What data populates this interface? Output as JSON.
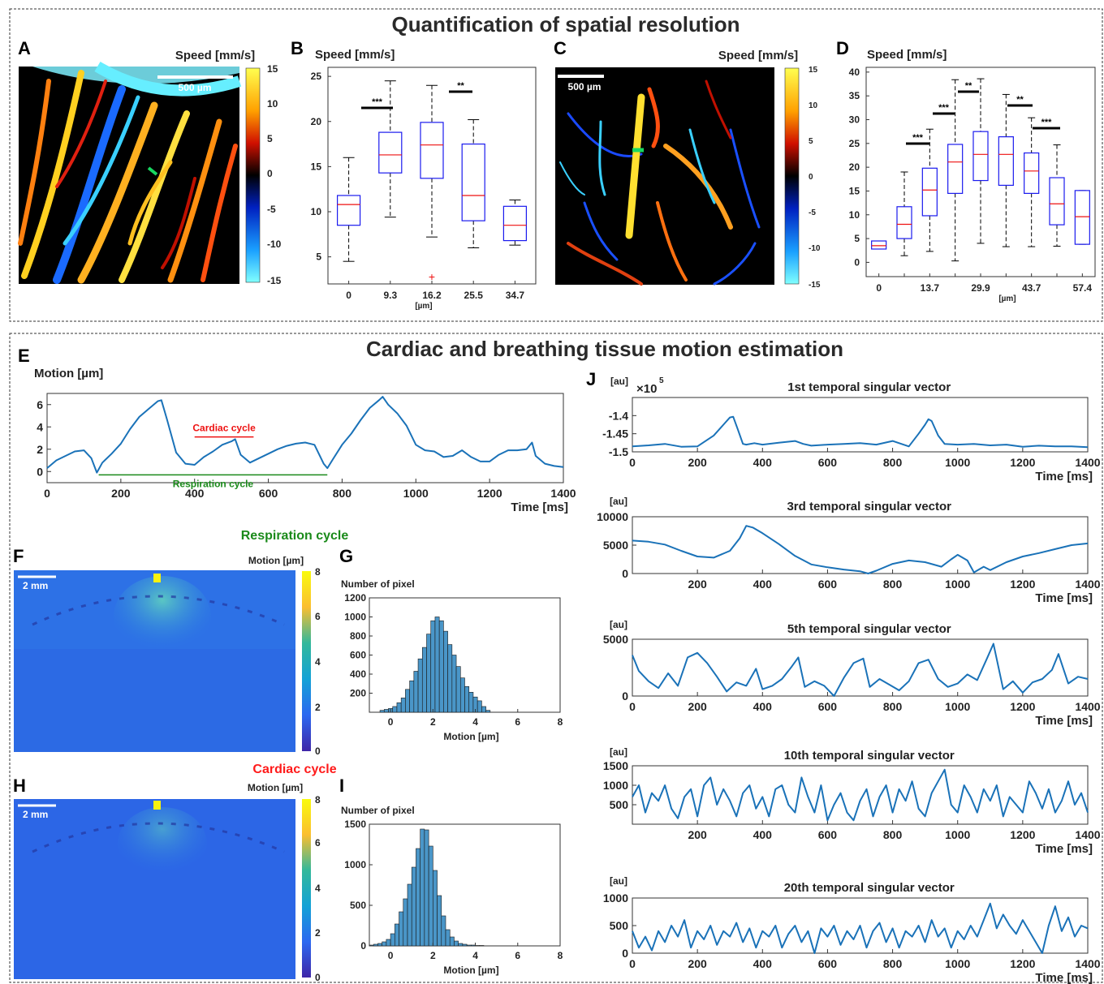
{
  "titles": {
    "top": "Quantification of spatial resolution",
    "bottom": "Cardiac and breathing tissue motion estimation"
  },
  "panel_labels": {
    "A": "A",
    "B": "B",
    "C": "C",
    "D": "D",
    "E": "E",
    "F": "F",
    "G": "G",
    "H": "H",
    "I": "I",
    "J": "J"
  },
  "panelA": {
    "colorbar_label": "Speed [mm/s]",
    "scalebar": "500 µm",
    "colorbar_ticks": [
      "15",
      "10",
      "5",
      "0",
      "-5",
      "-10",
      "-15"
    ]
  },
  "panelC": {
    "colorbar_label": "Speed [mm/s]",
    "scalebar": "500 µm",
    "colorbar_ticks": [
      "15",
      "10",
      "5",
      "0",
      "-5",
      "-10",
      "-15"
    ]
  },
  "panelF": {
    "header": "Respiration cycle",
    "colorbar_label": "Motion [µm]",
    "scalebar": "2 mm",
    "colorbar_ticks": [
      "8",
      "6",
      "4",
      "2",
      "0"
    ],
    "header_color": "#1a8a1a"
  },
  "panelH": {
    "header": "Cardiac cycle",
    "colorbar_label": "Motion [µm]",
    "scalebar": "2 mm",
    "colorbar_ticks": [
      "8",
      "6",
      "4",
      "2",
      "0"
    ],
    "header_color": "#ff1a1a"
  },
  "chart_data": [
    {
      "id": "B",
      "type": "box",
      "ylabel": "Speed [mm/s]",
      "xlabel": "[µm]",
      "ylim": [
        2,
        26
      ],
      "yticks": [
        5,
        10,
        15,
        20,
        25
      ],
      "categories": [
        "0",
        "9.3",
        "16.2",
        "25.5",
        "34.7"
      ],
      "boxes": [
        {
          "min": 4.5,
          "q1": 8.5,
          "median": 10.8,
          "q3": 11.8,
          "max": 16
        },
        {
          "min": 9.4,
          "q1": 14.3,
          "median": 16.3,
          "q3": 18.8,
          "max": 24.5
        },
        {
          "min": 7.2,
          "q1": 13.7,
          "median": 17.4,
          "q3": 19.9,
          "max": 24,
          "outliers": [
            2.8
          ]
        },
        {
          "min": 6,
          "q1": 9,
          "median": 11.8,
          "q3": 17.5,
          "max": 20.2
        },
        {
          "min": 6.3,
          "q1": 6.8,
          "median": 8.5,
          "q3": 10.6,
          "max": 11.3
        }
      ],
      "significance": [
        {
          "from": "0",
          "to": "9.3",
          "label": "***"
        },
        {
          "from": "25.5",
          "to": "16.2",
          "label": "**"
        }
      ]
    },
    {
      "id": "D",
      "type": "box",
      "ylabel": "Speed [mm/s]",
      "xlabel": "[µm]",
      "ylim": [
        -3,
        41
      ],
      "yticks": [
        0,
        5,
        10,
        15,
        20,
        25,
        30,
        35,
        40
      ],
      "categories": [
        "0",
        "",
        "13.7",
        "",
        "29.9",
        "",
        "43.7",
        "",
        "57.4"
      ],
      "boxes": [
        {
          "min": 2.8,
          "q1": 2.8,
          "median": 3.5,
          "q3": 4.5,
          "max": 4.5
        },
        {
          "min": 1.4,
          "q1": 5,
          "median": 8,
          "q3": 11.7,
          "max": 19
        },
        {
          "min": 2.3,
          "q1": 9.8,
          "median": 15.2,
          "q3": 19.8,
          "max": 28
        },
        {
          "min": 0.3,
          "q1": 14.5,
          "median": 21.1,
          "q3": 24.8,
          "max": 38.4
        },
        {
          "min": 4,
          "q1": 17.2,
          "median": 22.7,
          "q3": 27.5,
          "max": 38.6
        },
        {
          "min": 3.3,
          "q1": 16.2,
          "median": 22.7,
          "q3": 26.4,
          "max": 35.3
        },
        {
          "min": 3.3,
          "q1": 14.5,
          "median": 19.2,
          "q3": 23,
          "max": 30.4
        },
        {
          "min": 3.4,
          "q1": 7.9,
          "median": 12.3,
          "q3": 17.8,
          "max": 24.7
        },
        {
          "min": 3.8,
          "q1": 3.8,
          "median": 9.6,
          "q3": 15.1,
          "max": 15.1
        }
      ],
      "significance": [
        {
          "label": "***"
        },
        {
          "label": "***"
        },
        {
          "label": "**"
        },
        {
          "label": "**"
        },
        {
          "label": "***"
        }
      ]
    },
    {
      "id": "E",
      "type": "line",
      "ylabel": "Motion [µm]",
      "xlabel": "Time [ms]",
      "xlim": [
        0,
        1400
      ],
      "ylim": [
        -1,
        7
      ],
      "xticks": [
        0,
        200,
        400,
        600,
        800,
        1000,
        1200,
        1400
      ],
      "yticks": [
        0,
        2,
        4,
        6
      ],
      "x": [
        0,
        25,
        50,
        75,
        100,
        120,
        135,
        150,
        175,
        200,
        225,
        250,
        275,
        300,
        310,
        325,
        350,
        375,
        400,
        425,
        450,
        475,
        500,
        510,
        525,
        550,
        575,
        600,
        625,
        650,
        675,
        700,
        725,
        750,
        760,
        775,
        800,
        825,
        850,
        875,
        900,
        910,
        925,
        950,
        975,
        1000,
        1025,
        1050,
        1075,
        1100,
        1125,
        1150,
        1175,
        1200,
        1225,
        1250,
        1275,
        1300,
        1315,
        1325,
        1350,
        1375,
        1400
      ],
      "y": [
        0.3,
        1.0,
        1.4,
        1.8,
        1.9,
        1.2,
        -0.1,
        0.8,
        1.6,
        2.5,
        3.8,
        4.9,
        5.6,
        6.3,
        6.4,
        4.7,
        1.7,
        0.7,
        0.6,
        1.3,
        1.8,
        2.4,
        2.7,
        2.9,
        1.5,
        0.8,
        1.2,
        1.6,
        2.0,
        2.3,
        2.5,
        2.6,
        2.4,
        0.7,
        0.3,
        1.1,
        2.4,
        3.4,
        4.6,
        5.7,
        6.4,
        6.7,
        6.0,
        5.2,
        4.1,
        2.4,
        1.9,
        1.8,
        1.3,
        1.4,
        1.9,
        1.3,
        0.9,
        0.9,
        1.5,
        1.9,
        1.9,
        2.0,
        2.6,
        1.4,
        0.7,
        0.5,
        0.4
      ],
      "annotations": [
        {
          "text": "Cardiac cycle",
          "color": "#ee1111",
          "from": 400,
          "to": 560
        },
        {
          "text": "Respiration cycle",
          "color": "#1a8a1a",
          "from": 140,
          "to": 760
        }
      ]
    },
    {
      "id": "G",
      "type": "histogram",
      "ylabel": "Number of pixel",
      "xlabel": "Motion [µm]",
      "xlim": [
        -1,
        8
      ],
      "ylim": [
        0,
        1200
      ],
      "xticks": [
        0,
        2,
        4,
        6,
        8
      ],
      "yticks": [
        200,
        400,
        600,
        800,
        1000,
        1200
      ],
      "bin_edges_start": -0.5,
      "bin_width": 0.2,
      "counts": [
        20,
        30,
        40,
        60,
        100,
        150,
        240,
        330,
        430,
        560,
        680,
        820,
        960,
        1000,
        960,
        850,
        710,
        600,
        480,
        360,
        270,
        210,
        160,
        120,
        60,
        20
      ]
    },
    {
      "id": "I",
      "type": "histogram",
      "ylabel": "Number of pixel",
      "xlabel": "Motion [µm]",
      "xlim": [
        -1,
        8
      ],
      "ylim": [
        0,
        1500
      ],
      "xticks": [
        0,
        2,
        4,
        6,
        8
      ],
      "yticks": [
        0,
        500,
        1000,
        1500
      ],
      "bin_edges_start": -1,
      "bin_width": 0.2,
      "counts": [
        10,
        20,
        30,
        50,
        80,
        150,
        270,
        420,
        580,
        760,
        970,
        1200,
        1440,
        1430,
        1230,
        930,
        620,
        370,
        200,
        110,
        60,
        30,
        20,
        10,
        10,
        5,
        5
      ]
    },
    {
      "id": "J1",
      "type": "line",
      "title": "1st temporal singular vector",
      "ylabel": "[au]",
      "multiplier": "×10",
      "multiplier_exp": "5",
      "xlabel": "Time [ms]",
      "xlim": [
        0,
        1400
      ],
      "ylim": [
        -1.5,
        -1.35
      ],
      "xticks": [
        0,
        200,
        400,
        600,
        800,
        1000,
        1200,
        1400
      ],
      "yticks": [
        -1.4,
        -1.45,
        -1.5
      ],
      "ytick_labels": [
        "-1.4",
        "-1.45",
        "-1.5"
      ],
      "x": [
        0,
        50,
        100,
        150,
        200,
        250,
        280,
        300,
        310,
        325,
        340,
        350,
        375,
        400,
        450,
        500,
        525,
        550,
        600,
        650,
        700,
        750,
        800,
        850,
        880,
        900,
        910,
        920,
        940,
        960,
        1000,
        1050,
        1100,
        1150,
        1200,
        1250,
        1300,
        1350,
        1400
      ],
      "y": [
        -1.485,
        -1.482,
        -1.478,
        -1.486,
        -1.485,
        -1.455,
        -1.425,
        -1.405,
        -1.403,
        -1.44,
        -1.478,
        -1.48,
        -1.476,
        -1.48,
        -1.475,
        -1.47,
        -1.478,
        -1.483,
        -1.48,
        -1.478,
        -1.476,
        -1.48,
        -1.47,
        -1.485,
        -1.45,
        -1.425,
        -1.41,
        -1.415,
        -1.455,
        -1.478,
        -1.48,
        -1.478,
        -1.482,
        -1.48,
        -1.486,
        -1.483,
        -1.485,
        -1.485,
        -1.487
      ]
    },
    {
      "id": "J3",
      "type": "line",
      "title": "3rd temporal singular vector",
      "ylabel": "[au]",
      "xlabel": "Time [ms]",
      "xlim": [
        0,
        1400
      ],
      "ylim": [
        0,
        10000
      ],
      "xticks": [
        200,
        400,
        600,
        800,
        1000,
        1200,
        1400
      ],
      "yticks": [
        0,
        5000,
        10000
      ],
      "x": [
        0,
        50,
        100,
        150,
        200,
        250,
        300,
        330,
        350,
        370,
        400,
        450,
        500,
        550,
        600,
        650,
        700,
        725,
        750,
        800,
        850,
        900,
        950,
        980,
        1000,
        1030,
        1050,
        1080,
        1100,
        1150,
        1200,
        1250,
        1300,
        1350,
        1400
      ],
      "y": [
        5800,
        5600,
        5100,
        4000,
        3000,
        2800,
        4000,
        6200,
        8400,
        8100,
        7100,
        5200,
        3100,
        1600,
        1100,
        700,
        400,
        0,
        500,
        1700,
        2300,
        2000,
        1200,
        2500,
        3300,
        2300,
        200,
        1200,
        600,
        2000,
        3000,
        3600,
        4300,
        5000,
        5300
      ]
    },
    {
      "id": "J5",
      "type": "line",
      "title": "5th temporal singular vector",
      "ylabel": "[au]",
      "xlabel": "Time [ms]",
      "xlim": [
        0,
        1400
      ],
      "ylim": [
        0,
        5000
      ],
      "xticks": [
        0,
        200,
        400,
        600,
        800,
        1000,
        1200,
        1400
      ],
      "yticks": [
        0,
        5000
      ],
      "x": [
        0,
        20,
        50,
        80,
        110,
        140,
        170,
        200,
        230,
        260,
        290,
        320,
        350,
        380,
        400,
        430,
        460,
        490,
        510,
        530,
        560,
        590,
        620,
        650,
        680,
        710,
        730,
        760,
        790,
        820,
        850,
        880,
        910,
        940,
        970,
        1000,
        1030,
        1060,
        1090,
        1110,
        1140,
        1170,
        1200,
        1230,
        1260,
        1290,
        1310,
        1340,
        1370,
        1400
      ],
      "y": [
        3600,
        2200,
        1300,
        700,
        2000,
        900,
        3400,
        3800,
        2900,
        1700,
        400,
        1200,
        900,
        2400,
        600,
        900,
        1500,
        2600,
        3400,
        800,
        1300,
        900,
        0,
        1600,
        2900,
        3300,
        800,
        1500,
        1000,
        500,
        1300,
        2900,
        3200,
        1500,
        800,
        1100,
        1900,
        1400,
        3300,
        4600,
        600,
        1300,
        300,
        1200,
        1500,
        2300,
        3700,
        1100,
        1700,
        1500
      ]
    },
    {
      "id": "J10",
      "type": "line",
      "title": "10th temporal singular vector",
      "ylabel": "[au]",
      "xlabel": "Time [ms]",
      "xlim": [
        0,
        1400
      ],
      "ylim": [
        0,
        1500
      ],
      "xticks": [
        200,
        400,
        600,
        800,
        1000,
        1200,
        1400
      ],
      "yticks": [
        500,
        1000,
        1500
      ],
      "x": [
        0,
        20,
        40,
        60,
        80,
        100,
        120,
        140,
        160,
        180,
        200,
        220,
        240,
        260,
        280,
        300,
        320,
        340,
        360,
        380,
        400,
        420,
        440,
        460,
        480,
        500,
        520,
        540,
        560,
        580,
        600,
        620,
        640,
        660,
        680,
        700,
        720,
        740,
        760,
        780,
        800,
        820,
        840,
        860,
        880,
        900,
        920,
        940,
        960,
        980,
        1000,
        1020,
        1040,
        1060,
        1080,
        1100,
        1120,
        1140,
        1160,
        1180,
        1200,
        1220,
        1240,
        1260,
        1280,
        1300,
        1320,
        1340,
        1360,
        1380,
        1400
      ],
      "y": [
        700,
        1000,
        300,
        800,
        600,
        1000,
        400,
        150,
        700,
        900,
        200,
        1000,
        1200,
        500,
        900,
        600,
        200,
        800,
        1000,
        400,
        700,
        200,
        900,
        1000,
        500,
        300,
        1200,
        700,
        300,
        1000,
        100,
        500,
        800,
        300,
        100,
        600,
        900,
        200,
        700,
        1000,
        300,
        900,
        600,
        1100,
        400,
        200,
        800,
        1100,
        1400,
        500,
        300,
        1000,
        700,
        300,
        900,
        600,
        1000,
        200,
        700,
        500,
        300,
        1100,
        800,
        400,
        900,
        300,
        600,
        1100,
        500,
        800,
        300
      ]
    },
    {
      "id": "J20",
      "type": "line",
      "title": "20th temporal singular vector",
      "ylabel": "[au]",
      "xlabel": "Time [ms]",
      "xlim": [
        0,
        1400
      ],
      "ylim": [
        0,
        1000
      ],
      "xticks": [
        0,
        200,
        400,
        600,
        800,
        1000,
        1200,
        1400
      ],
      "yticks": [
        0,
        500,
        1000
      ],
      "x": [
        0,
        20,
        40,
        60,
        80,
        100,
        120,
        140,
        160,
        180,
        200,
        220,
        240,
        260,
        280,
        300,
        320,
        340,
        360,
        380,
        400,
        420,
        440,
        460,
        480,
        500,
        520,
        540,
        560,
        580,
        600,
        620,
        640,
        660,
        680,
        700,
        720,
        740,
        760,
        780,
        800,
        820,
        840,
        860,
        880,
        900,
        920,
        940,
        960,
        980,
        1000,
        1020,
        1040,
        1060,
        1080,
        1100,
        1120,
        1140,
        1160,
        1180,
        1200,
        1220,
        1240,
        1260,
        1280,
        1300,
        1320,
        1340,
        1360,
        1380,
        1400
      ],
      "y": [
        400,
        100,
        300,
        50,
        400,
        200,
        500,
        300,
        600,
        100,
        400,
        250,
        500,
        150,
        400,
        300,
        550,
        200,
        450,
        100,
        400,
        300,
        500,
        100,
        350,
        500,
        200,
        400,
        0,
        450,
        300,
        500,
        150,
        400,
        250,
        500,
        100,
        400,
        550,
        200,
        450,
        100,
        400,
        300,
        500,
        200,
        600,
        300,
        450,
        100,
        400,
        250,
        500,
        300,
        600,
        900,
        450,
        700,
        500,
        350,
        600,
        400,
        200,
        0,
        500,
        850,
        400,
        650,
        300,
        500,
        450
      ]
    }
  ]
}
